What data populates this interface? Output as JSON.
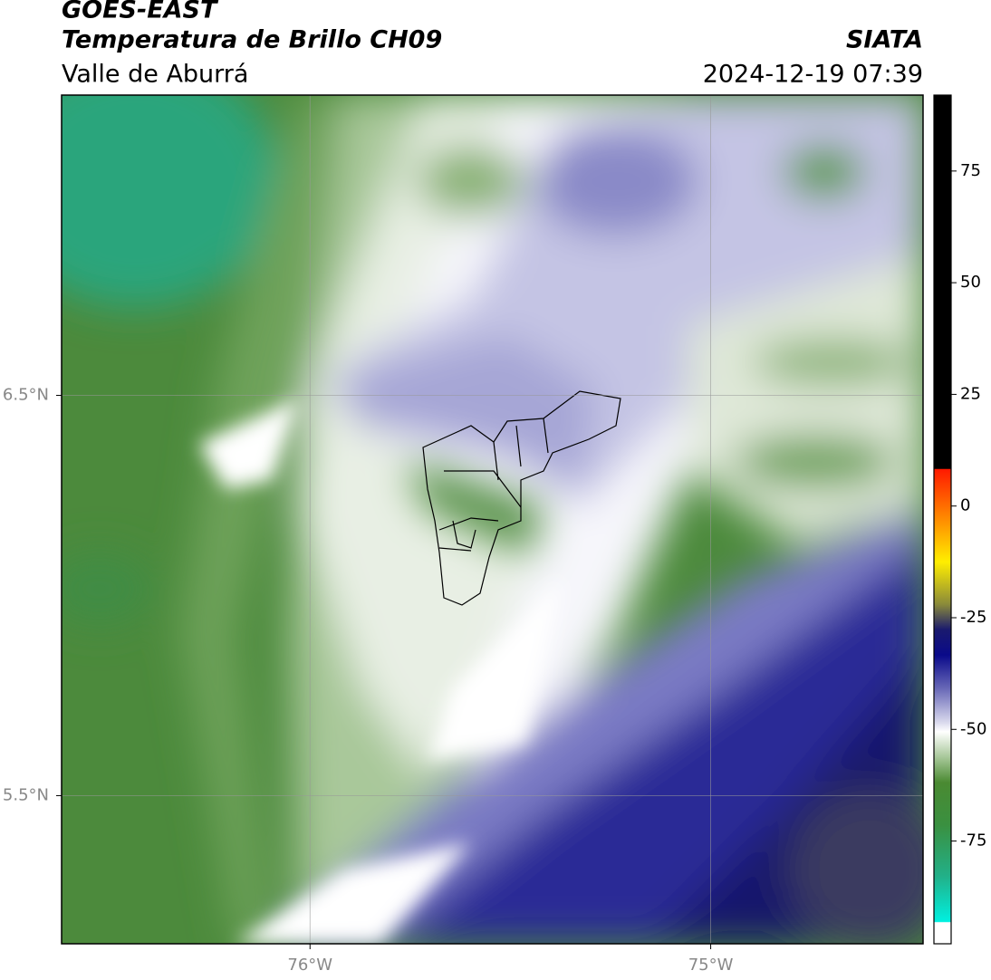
{
  "header": {
    "title": "GOES-EAST",
    "subtitle": "Temperatura de Brillo CH09",
    "region": "Valle de Aburrá",
    "source": "SIATA",
    "timestamp": "2024-12-19 07:39"
  },
  "map": {
    "xlim": [
      -76.62,
      -74.47
    ],
    "ylim": [
      5.13,
      7.25
    ],
    "xticks": [
      {
        "value": -76,
        "label": "76°W"
      },
      {
        "value": -75,
        "label": "75°W"
      }
    ],
    "yticks": [
      {
        "value": 6.5,
        "label": "6.5°N"
      },
      {
        "value": 5.5,
        "label": "5.5°N"
      }
    ],
    "grid": true
  },
  "colorbar": {
    "clim": [
      -98,
      92
    ],
    "ticks": [
      75,
      50,
      25,
      0,
      -25,
      -50,
      -75
    ]
  }
}
